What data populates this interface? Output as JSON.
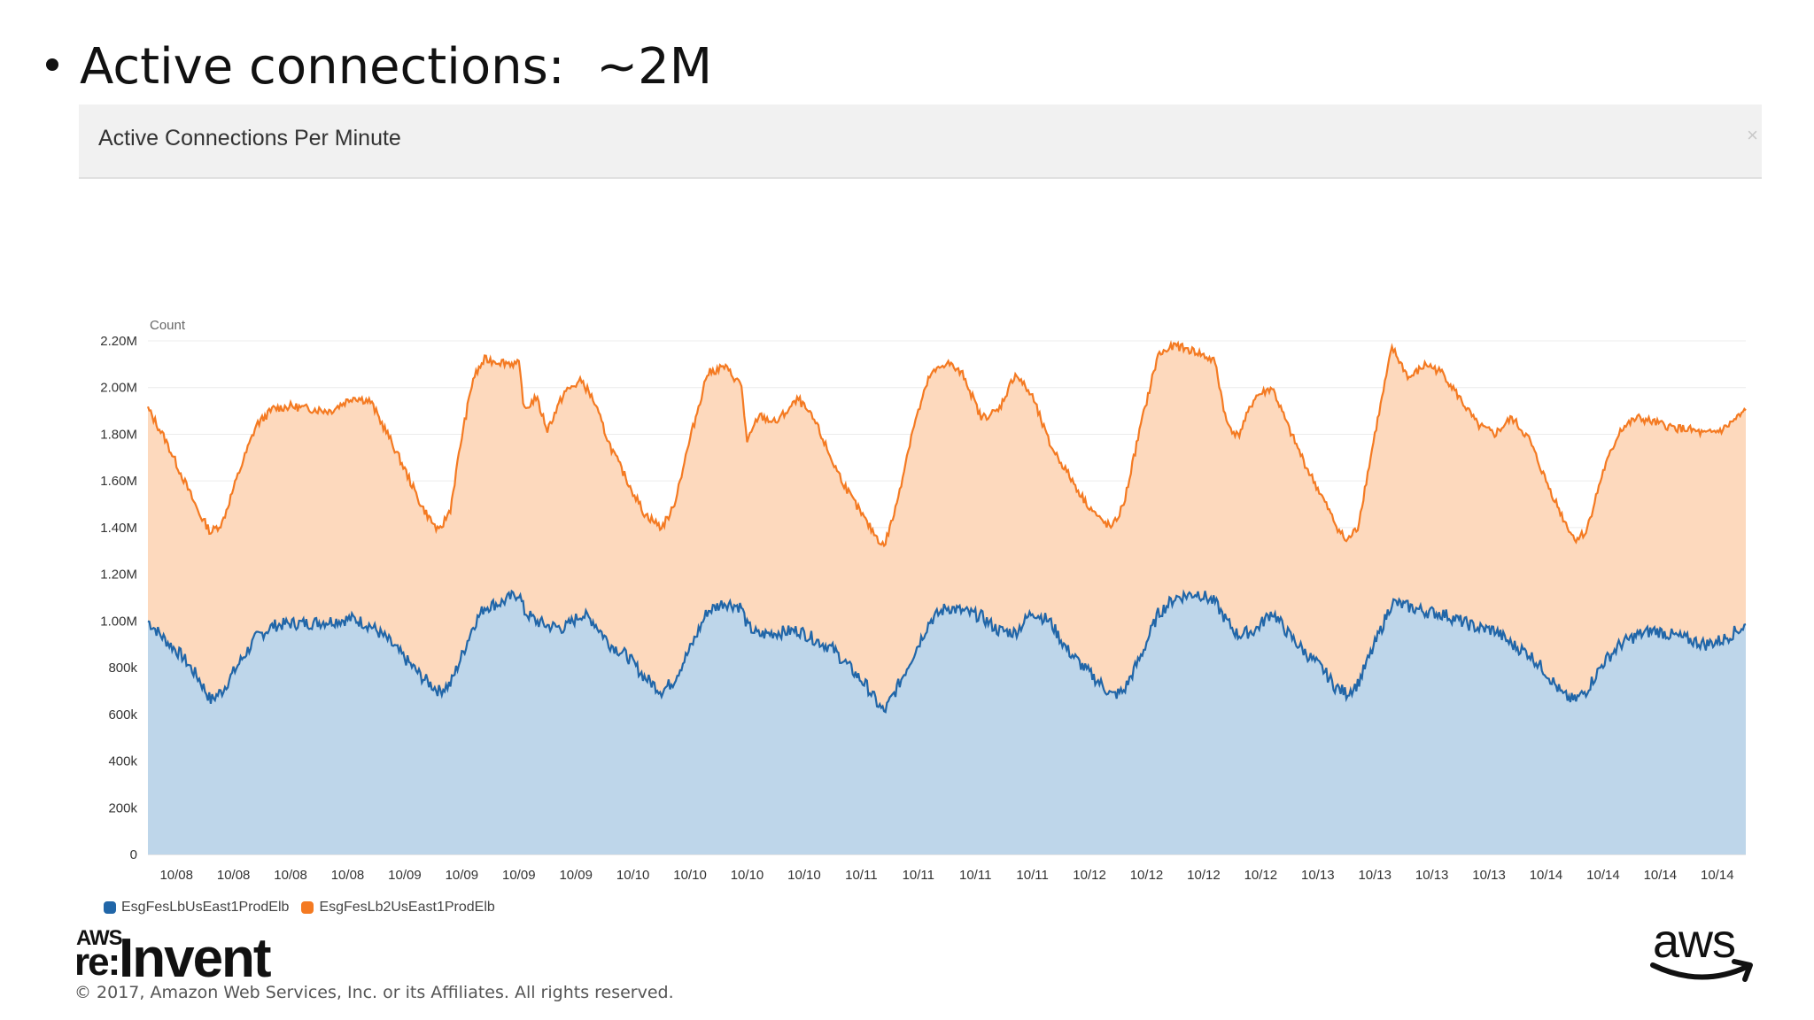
{
  "slide": {
    "bullet_text": "Active connections:  ~2M",
    "copyright": "© 2017, Amazon Web Services, Inc. or its Affiliates. All rights reserved.",
    "logo_reinvent": {
      "aws": "AWS",
      "re": "re:",
      "invent": "Invent"
    },
    "logo_aws": "aws"
  },
  "panel": {
    "title": "Active Connections Per Minute",
    "close_glyph": "×"
  },
  "colors": {
    "series1_line": "#2166a8",
    "series1_fill": "#bed6ea",
    "series2_line": "#f47a22",
    "series2_fill": "#fdd9bd",
    "grid": "#ececec",
    "axis": "#cccccc"
  },
  "chart_data": {
    "type": "area",
    "stacked": true,
    "title": "Active Connections Per Minute",
    "ylabel": "Count",
    "ylim": [
      0,
      2200000
    ],
    "y_ticks": [
      {
        "value": 0,
        "label": "0"
      },
      {
        "value": 200000,
        "label": "200k"
      },
      {
        "value": 400000,
        "label": "400k"
      },
      {
        "value": 600000,
        "label": "600k"
      },
      {
        "value": 800000,
        "label": "800k"
      },
      {
        "value": 1000000,
        "label": "1.00M"
      },
      {
        "value": 1200000,
        "label": "1.20M"
      },
      {
        "value": 1400000,
        "label": "1.40M"
      },
      {
        "value": 1600000,
        "label": "1.60M"
      },
      {
        "value": 1800000,
        "label": "1.80M"
      },
      {
        "value": 2000000,
        "label": "2.00M"
      },
      {
        "value": 2200000,
        "label": "2.20M"
      }
    ],
    "xlim": [
      0,
      28
    ],
    "x_tick_labels": [
      "10/08",
      "10/08",
      "10/08",
      "10/08",
      "10/09",
      "10/09",
      "10/09",
      "10/09",
      "10/10",
      "10/10",
      "10/10",
      "10/10",
      "10/11",
      "10/11",
      "10/11",
      "10/11",
      "10/12",
      "10/12",
      "10/12",
      "10/12",
      "10/13",
      "10/13",
      "10/13",
      "10/13",
      "10/14",
      "10/14",
      "10/14",
      "10/14"
    ],
    "legend_position": "bottom-left",
    "series": [
      {
        "name": "EsgFesLbUsEast1ProdElb",
        "points": [
          [
            0,
            1000000
          ],
          [
            0.3,
            920000
          ],
          [
            0.6,
            850000
          ],
          [
            0.9,
            750000
          ],
          [
            1.1,
            660000
          ],
          [
            1.3,
            700000
          ],
          [
            1.6,
            820000
          ],
          [
            1.9,
            930000
          ],
          [
            2.2,
            980000
          ],
          [
            2.5,
            990000
          ],
          [
            2.8,
            990000
          ],
          [
            3.2,
            1000000
          ],
          [
            3.6,
            1010000
          ],
          [
            3.9,
            980000
          ],
          [
            4.2,
            920000
          ],
          [
            4.5,
            840000
          ],
          [
            4.8,
            760000
          ],
          [
            5.1,
            700000
          ],
          [
            5.3,
            730000
          ],
          [
            5.5,
            850000
          ],
          [
            5.7,
            980000
          ],
          [
            5.9,
            1060000
          ],
          [
            6.2,
            1080000
          ],
          [
            6.5,
            1120000
          ],
          [
            6.6,
            1040000
          ],
          [
            6.8,
            1000000
          ],
          [
            7.0,
            980000
          ],
          [
            7.3,
            970000
          ],
          [
            7.6,
            1030000
          ],
          [
            7.8,
            1000000
          ],
          [
            8.1,
            900000
          ],
          [
            8.4,
            850000
          ],
          [
            8.7,
            760000
          ],
          [
            9.0,
            700000
          ],
          [
            9.2,
            740000
          ],
          [
            9.5,
            880000
          ],
          [
            9.8,
            1040000
          ],
          [
            10.1,
            1080000
          ],
          [
            10.4,
            1060000
          ],
          [
            10.5,
            980000
          ],
          [
            10.7,
            940000
          ],
          [
            11.0,
            950000
          ],
          [
            11.4,
            960000
          ],
          [
            11.7,
            920000
          ],
          [
            12.0,
            880000
          ],
          [
            12.3,
            800000
          ],
          [
            12.6,
            720000
          ],
          [
            12.8,
            640000
          ],
          [
            12.9,
            610000
          ],
          [
            13.1,
            700000
          ],
          [
            13.4,
            850000
          ],
          [
            13.7,
            1000000
          ],
          [
            14.0,
            1060000
          ],
          [
            14.3,
            1040000
          ],
          [
            14.6,
            1020000
          ],
          [
            14.9,
            960000
          ],
          [
            15.2,
            950000
          ],
          [
            15.5,
            1040000
          ],
          [
            15.8,
            1000000
          ],
          [
            16.1,
            880000
          ],
          [
            16.4,
            800000
          ],
          [
            16.7,
            730000
          ],
          [
            16.9,
            680000
          ],
          [
            17.1,
            700000
          ],
          [
            17.4,
            850000
          ],
          [
            17.7,
            1030000
          ],
          [
            18.0,
            1100000
          ],
          [
            18.4,
            1120000
          ],
          [
            18.7,
            1080000
          ],
          [
            18.9,
            1000000
          ],
          [
            19.1,
            940000
          ],
          [
            19.4,
            960000
          ],
          [
            19.7,
            1040000
          ],
          [
            20.0,
            940000
          ],
          [
            20.3,
            860000
          ],
          [
            20.6,
            790000
          ],
          [
            20.8,
            720000
          ],
          [
            21.0,
            690000
          ],
          [
            21.2,
            730000
          ],
          [
            21.5,
            900000
          ],
          [
            21.8,
            1080000
          ],
          [
            22.1,
            1060000
          ],
          [
            22.4,
            1040000
          ],
          [
            22.7,
            1030000
          ],
          [
            23.0,
            1000000
          ],
          [
            23.3,
            970000
          ],
          [
            23.6,
            960000
          ],
          [
            23.9,
            900000
          ],
          [
            24.2,
            860000
          ],
          [
            24.5,
            780000
          ],
          [
            24.8,
            680000
          ],
          [
            25.0,
            660000
          ],
          [
            25.2,
            700000
          ],
          [
            25.5,
            820000
          ],
          [
            25.8,
            900000
          ],
          [
            26.1,
            940000
          ],
          [
            26.4,
            960000
          ],
          [
            26.7,
            940000
          ],
          [
            27.0,
            920000
          ],
          [
            27.3,
            900000
          ],
          [
            27.6,
            920000
          ],
          [
            27.85,
            960000
          ],
          [
            28,
            980000
          ]
        ]
      },
      {
        "name": "EsgFesLb2UsEast1ProdElb",
        "points": [
          [
            0,
            1910000
          ],
          [
            0.3,
            1780000
          ],
          [
            0.6,
            1620000
          ],
          [
            0.9,
            1460000
          ],
          [
            1.1,
            1380000
          ],
          [
            1.3,
            1420000
          ],
          [
            1.6,
            1640000
          ],
          [
            1.9,
            1840000
          ],
          [
            2.2,
            1910000
          ],
          [
            2.5,
            1920000
          ],
          [
            2.8,
            1910000
          ],
          [
            3.2,
            1900000
          ],
          [
            3.6,
            1960000
          ],
          [
            3.9,
            1940000
          ],
          [
            4.2,
            1800000
          ],
          [
            4.5,
            1650000
          ],
          [
            4.8,
            1490000
          ],
          [
            5.1,
            1380000
          ],
          [
            5.3,
            1480000
          ],
          [
            5.5,
            1790000
          ],
          [
            5.7,
            2040000
          ],
          [
            5.9,
            2120000
          ],
          [
            6.2,
            2110000
          ],
          [
            6.5,
            2100000
          ],
          [
            6.6,
            1900000
          ],
          [
            6.8,
            1960000
          ],
          [
            7.0,
            1820000
          ],
          [
            7.3,
            1980000
          ],
          [
            7.6,
            2030000
          ],
          [
            7.8,
            1950000
          ],
          [
            8.1,
            1750000
          ],
          [
            8.4,
            1600000
          ],
          [
            8.7,
            1460000
          ],
          [
            9.0,
            1400000
          ],
          [
            9.2,
            1480000
          ],
          [
            9.5,
            1780000
          ],
          [
            9.8,
            2060000
          ],
          [
            10.1,
            2090000
          ],
          [
            10.4,
            2010000
          ],
          [
            10.5,
            1760000
          ],
          [
            10.7,
            1880000
          ],
          [
            11.0,
            1850000
          ],
          [
            11.4,
            1950000
          ],
          [
            11.7,
            1850000
          ],
          [
            12.0,
            1680000
          ],
          [
            12.3,
            1540000
          ],
          [
            12.6,
            1420000
          ],
          [
            12.8,
            1350000
          ],
          [
            12.9,
            1320000
          ],
          [
            13.1,
            1480000
          ],
          [
            13.4,
            1820000
          ],
          [
            13.7,
            2050000
          ],
          [
            14.0,
            2110000
          ],
          [
            14.3,
            2050000
          ],
          [
            14.6,
            1870000
          ],
          [
            14.9,
            1900000
          ],
          [
            15.2,
            2060000
          ],
          [
            15.5,
            1960000
          ],
          [
            15.8,
            1760000
          ],
          [
            16.1,
            1640000
          ],
          [
            16.4,
            1520000
          ],
          [
            16.7,
            1430000
          ],
          [
            16.9,
            1400000
          ],
          [
            17.1,
            1500000
          ],
          [
            17.4,
            1840000
          ],
          [
            17.7,
            2140000
          ],
          [
            18.0,
            2180000
          ],
          [
            18.4,
            2150000
          ],
          [
            18.7,
            2110000
          ],
          [
            18.9,
            1850000
          ],
          [
            19.1,
            1790000
          ],
          [
            19.4,
            1960000
          ],
          [
            19.7,
            2000000
          ],
          [
            20.0,
            1820000
          ],
          [
            20.3,
            1660000
          ],
          [
            20.6,
            1520000
          ],
          [
            20.8,
            1420000
          ],
          [
            21.0,
            1340000
          ],
          [
            21.2,
            1400000
          ],
          [
            21.5,
            1800000
          ],
          [
            21.8,
            2170000
          ],
          [
            22.1,
            2040000
          ],
          [
            22.4,
            2100000
          ],
          [
            22.7,
            2060000
          ],
          [
            23.0,
            1950000
          ],
          [
            23.3,
            1840000
          ],
          [
            23.6,
            1800000
          ],
          [
            23.9,
            1870000
          ],
          [
            24.2,
            1780000
          ],
          [
            24.5,
            1600000
          ],
          [
            24.8,
            1440000
          ],
          [
            25.0,
            1350000
          ],
          [
            25.2,
            1380000
          ],
          [
            25.5,
            1640000
          ],
          [
            25.8,
            1820000
          ],
          [
            26.1,
            1870000
          ],
          [
            26.4,
            1850000
          ],
          [
            26.7,
            1830000
          ],
          [
            27.0,
            1820000
          ],
          [
            27.3,
            1800000
          ],
          [
            27.6,
            1820000
          ],
          [
            27.85,
            1870000
          ],
          [
            28,
            1900000
          ]
        ]
      }
    ]
  }
}
